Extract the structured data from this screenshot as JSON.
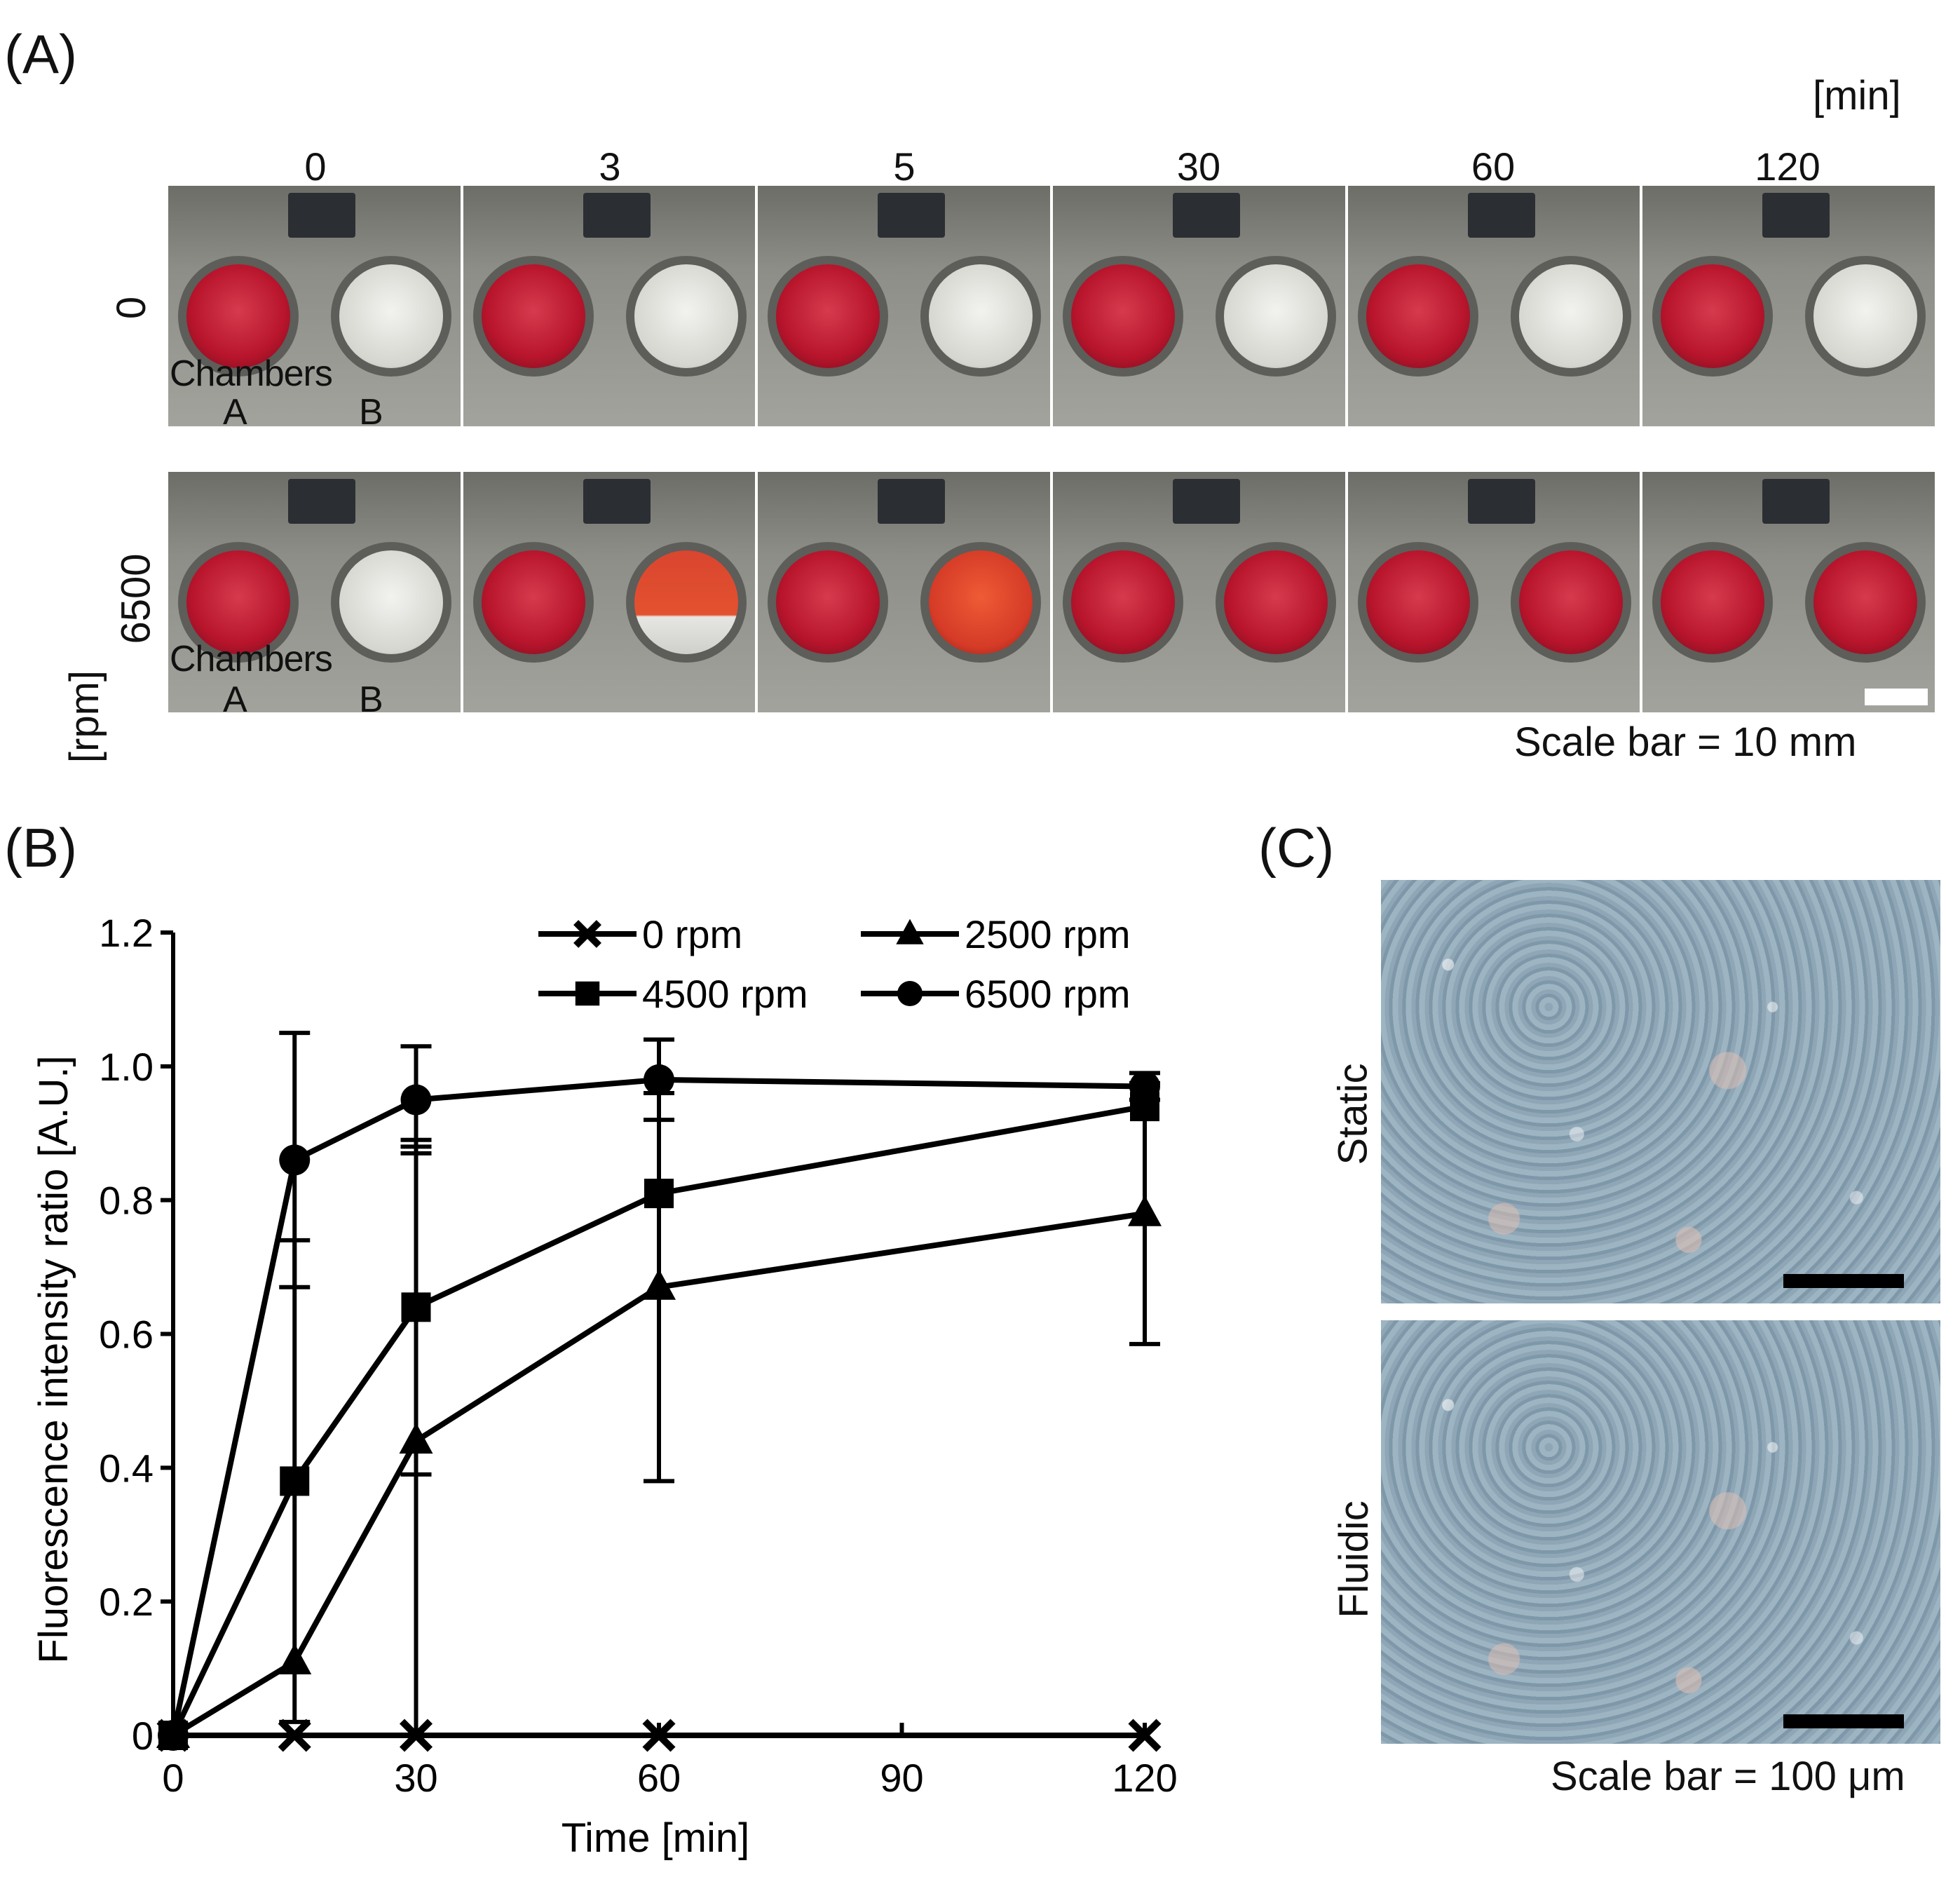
{
  "panel_a": {
    "label": "(A)",
    "time_unit": "[min]",
    "times": [
      "0",
      "3",
      "5",
      "30",
      "60",
      "120"
    ],
    "row_labels": [
      "0",
      "6500"
    ],
    "row_unit": "[rpm]",
    "chambers_label": "Chambers",
    "chamber_a": "A",
    "chamber_b": "B",
    "scale_text": "Scale bar = 10 mm",
    "rows": [
      {
        "b_states": [
          "white",
          "white",
          "white",
          "white",
          "white",
          "white"
        ]
      },
      {
        "b_states": [
          "white",
          "partial",
          "orange",
          "red",
          "red",
          "red"
        ]
      }
    ]
  },
  "panel_b": {
    "label": "(B)"
  },
  "panel_c": {
    "label": "(C)",
    "static_label": "Static",
    "fluidic_label": "Fluidic",
    "scale_text": "Scale bar = 100 μm"
  },
  "chart_data": {
    "type": "line",
    "xlabel": "Time [min]",
    "ylabel": "Fluorescence intensity ratio [A.U.]",
    "xlim": [
      0,
      120
    ],
    "ylim": [
      0,
      1.2
    ],
    "xticks": [
      0,
      30,
      60,
      90,
      120
    ],
    "xtick_labels": [
      "0",
      "30",
      "60",
      "90",
      "120"
    ],
    "yticks": [
      0,
      0.2,
      0.4,
      0.6,
      0.8,
      1.0,
      1.2
    ],
    "ytick_labels": [
      "0",
      "0.2",
      "0.4",
      "0.6",
      "0.8",
      "1.0",
      "1.2"
    ],
    "legend_placement": "top-right",
    "series": [
      {
        "name": "0 rpm",
        "marker": "x",
        "x": [
          0,
          15,
          30,
          60,
          120
        ],
        "y": [
          0.0,
          0.0,
          0.0,
          0.0,
          0.0
        ],
        "err": [
          0,
          0,
          0,
          0,
          0
        ]
      },
      {
        "name": "2500 rpm",
        "marker": "triangle",
        "x": [
          0,
          15,
          30,
          60,
          120
        ],
        "y": [
          0.0,
          0.11,
          0.44,
          0.67,
          0.78
        ],
        "err": [
          0,
          0,
          0.44,
          0.29,
          0.195
        ]
      },
      {
        "name": "4500 rpm",
        "marker": "square",
        "x": [
          0,
          15,
          30,
          60,
          120
        ],
        "y": [
          0.0,
          0.38,
          0.64,
          0.81,
          0.94
        ],
        "err": [
          0,
          0.36,
          0.25,
          0,
          0
        ]
      },
      {
        "name": "6500 rpm",
        "marker": "circle",
        "x": [
          0,
          15,
          30,
          60,
          120
        ],
        "y": [
          0.0,
          0.86,
          0.95,
          0.98,
          0.97
        ],
        "err": [
          0,
          0.19,
          0.08,
          0.06,
          0.02
        ]
      }
    ]
  }
}
